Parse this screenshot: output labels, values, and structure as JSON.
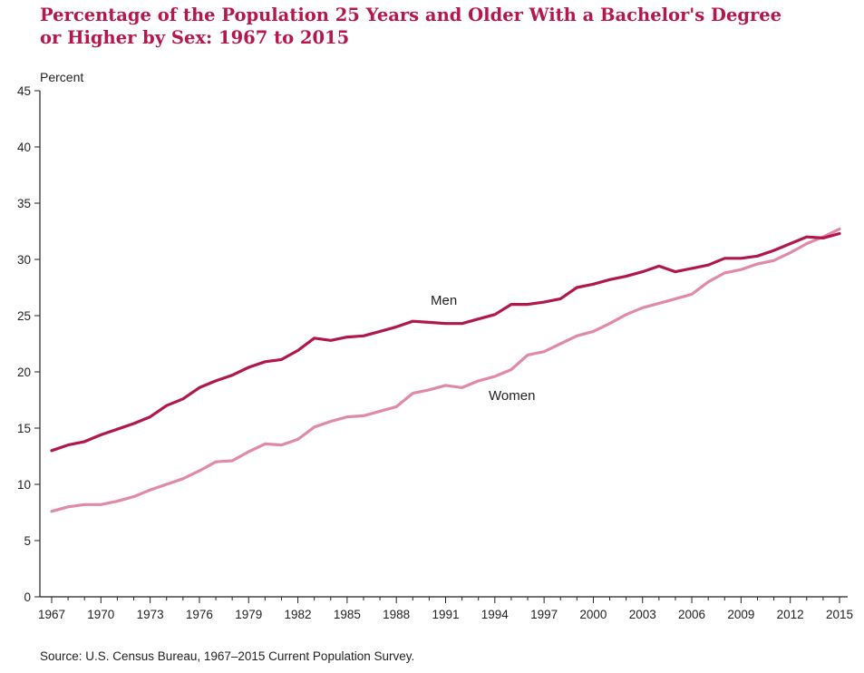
{
  "title_lines": [
    "Percentage of the Population 25 Years and Older With a Bachelor's Degree",
    "or Higher by Sex: 1967 to 2015"
  ],
  "source": "Source: U.S. Census Bureau, 1967–2015 Current Population Survey.",
  "colors": {
    "title": "#b5174b",
    "men": "#b0184c",
    "women": "#e08aa6",
    "axis": "#222222"
  },
  "chart_data": {
    "type": "line",
    "title": "Percentage of the Population 25 Years and Older With a Bachelor's Degree or Higher by Sex: 1967 to 2015",
    "xlabel": "",
    "ylabel": "Percent",
    "xlim": [
      1967,
      2015
    ],
    "ylim": [
      0,
      45
    ],
    "yticks": [
      0,
      5,
      10,
      15,
      20,
      25,
      30,
      35,
      40,
      45
    ],
    "xticks": [
      1967,
      1970,
      1973,
      1976,
      1979,
      1982,
      1985,
      1988,
      1991,
      1994,
      1997,
      2000,
      2003,
      2006,
      2009,
      2012,
      2015
    ],
    "grid": false,
    "x": [
      1967,
      1968,
      1969,
      1970,
      1971,
      1972,
      1973,
      1974,
      1975,
      1976,
      1977,
      1978,
      1979,
      1980,
      1981,
      1982,
      1983,
      1984,
      1985,
      1986,
      1987,
      1988,
      1989,
      1990,
      1991,
      1992,
      1993,
      1994,
      1995,
      1996,
      1997,
      1998,
      1999,
      2000,
      2001,
      2002,
      2003,
      2004,
      2005,
      2006,
      2007,
      2008,
      2009,
      2010,
      2011,
      2012,
      2013,
      2014,
      2015
    ],
    "series": [
      {
        "name": "Men",
        "label": "Men",
        "values": [
          13.0,
          13.5,
          13.8,
          14.4,
          14.9,
          15.4,
          16.0,
          17.0,
          17.6,
          18.6,
          19.2,
          19.7,
          20.4,
          20.9,
          21.1,
          21.9,
          23.0,
          22.8,
          23.1,
          23.2,
          23.6,
          24.0,
          24.5,
          24.4,
          24.3,
          24.3,
          24.7,
          25.1,
          26.0,
          26.0,
          26.2,
          26.5,
          27.5,
          27.8,
          28.2,
          28.5,
          28.9,
          29.4,
          28.9,
          29.2,
          29.5,
          30.1,
          30.1,
          30.3,
          30.8,
          31.4,
          32.0,
          31.9,
          32.3
        ]
      },
      {
        "name": "Women",
        "label": "Women",
        "values": [
          7.6,
          8.0,
          8.2,
          8.2,
          8.5,
          8.9,
          9.5,
          10.0,
          10.5,
          11.2,
          12.0,
          12.1,
          12.9,
          13.6,
          13.5,
          14.0,
          15.1,
          15.6,
          16.0,
          16.1,
          16.5,
          16.9,
          18.1,
          18.4,
          18.8,
          18.6,
          19.2,
          19.6,
          20.2,
          21.5,
          21.8,
          22.5,
          23.2,
          23.6,
          24.3,
          25.1,
          25.7,
          26.1,
          26.5,
          26.9,
          28.0,
          28.8,
          29.1,
          29.6,
          29.9,
          30.6,
          31.4,
          32.0,
          32.7
        ]
      }
    ]
  }
}
